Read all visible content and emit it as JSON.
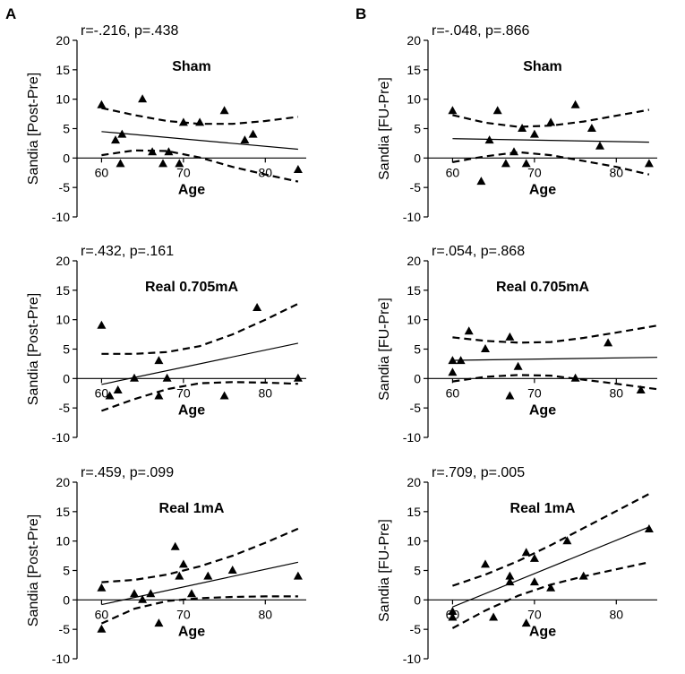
{
  "panel_labels": [
    "A",
    "B"
  ],
  "chart_data": [
    {
      "type": "scatter",
      "title": "Sham",
      "stat": "r=-.216, p=.438",
      "xlabel": "Age",
      "ylabel": "Sandia [Post-Pre]",
      "xlim": [
        57,
        85
      ],
      "ylim": [
        -10,
        20
      ],
      "xticks": [
        60,
        70,
        80
      ],
      "yticks": [
        -10,
        -5,
        0,
        5,
        10,
        15,
        20
      ],
      "points": [
        [
          60,
          9
        ],
        [
          61.7,
          3
        ],
        [
          62.5,
          4
        ],
        [
          62.3,
          -1
        ],
        [
          65,
          10
        ],
        [
          66.2,
          1
        ],
        [
          67.5,
          -1
        ],
        [
          68.2,
          1
        ],
        [
          69.5,
          -1
        ],
        [
          70,
          6
        ],
        [
          72,
          6
        ],
        [
          75,
          8
        ],
        [
          77.5,
          3
        ],
        [
          78.5,
          4
        ],
        [
          84,
          -2
        ]
      ],
      "fit": [
        [
          60,
          4.5
        ],
        [
          84,
          1.5
        ]
      ],
      "ci_upper": [
        [
          60,
          8.5
        ],
        [
          64,
          7.3
        ],
        [
          68,
          6.3
        ],
        [
          72,
          5.8
        ],
        [
          76,
          5.8
        ],
        [
          80,
          6.3
        ],
        [
          84,
          7
        ]
      ],
      "ci_lower": [
        [
          60,
          0.5
        ],
        [
          64,
          1.3
        ],
        [
          68,
          1.2
        ],
        [
          72,
          0.1
        ],
        [
          76,
          -1.5
        ],
        [
          80,
          -2.8
        ],
        [
          84,
          -4
        ]
      ]
    },
    {
      "type": "scatter",
      "title": "Sham",
      "stat": "r=-.048, p=.866",
      "xlabel": "Age",
      "ylabel": "Sandia [FU-Pre]",
      "xlim": [
        57,
        85
      ],
      "ylim": [
        -10,
        20
      ],
      "xticks": [
        60,
        70,
        80
      ],
      "yticks": [
        -10,
        -5,
        0,
        5,
        10,
        15,
        20
      ],
      "points": [
        [
          60,
          8
        ],
        [
          63.5,
          -4
        ],
        [
          64.5,
          3
        ],
        [
          65.5,
          8
        ],
        [
          66.5,
          -1
        ],
        [
          67.5,
          1
        ],
        [
          68.5,
          5
        ],
        [
          69,
          -1
        ],
        [
          70,
          4
        ],
        [
          72,
          6
        ],
        [
          75,
          9
        ],
        [
          77,
          5
        ],
        [
          78,
          2
        ],
        [
          84,
          -1
        ]
      ],
      "fit": [
        [
          60,
          3.3
        ],
        [
          84,
          2.7
        ]
      ],
      "ci_upper": [
        [
          60,
          7.3
        ],
        [
          64,
          6
        ],
        [
          68,
          5.3
        ],
        [
          72,
          5.5
        ],
        [
          76,
          6.2
        ],
        [
          80,
          7.2
        ],
        [
          84,
          8.2
        ]
      ],
      "ci_lower": [
        [
          60,
          -0.7
        ],
        [
          64,
          0.3
        ],
        [
          68,
          1
        ],
        [
          72,
          0.5
        ],
        [
          76,
          -0.5
        ],
        [
          80,
          -1.5
        ],
        [
          84,
          -2.8
        ]
      ]
    },
    {
      "type": "scatter",
      "title": "Real 0.705mA",
      "stat": "r=.432, p=.161",
      "xlabel": "Age",
      "ylabel": "Sandia [Post-Pre]",
      "xlim": [
        57,
        85
      ],
      "ylim": [
        -10,
        20
      ],
      "xticks": [
        60,
        70,
        80
      ],
      "yticks": [
        -10,
        -5,
        0,
        5,
        10,
        15,
        20
      ],
      "points": [
        [
          60,
          9
        ],
        [
          61,
          -3
        ],
        [
          62,
          -2
        ],
        [
          64,
          0
        ],
        [
          67,
          3
        ],
        [
          67,
          -3
        ],
        [
          68,
          0
        ],
        [
          75,
          -3
        ],
        [
          79,
          12
        ],
        [
          84,
          0
        ]
      ],
      "fit": [
        [
          60,
          -1
        ],
        [
          84,
          6
        ]
      ],
      "ci_upper": [
        [
          60,
          4.2
        ],
        [
          64,
          4.2
        ],
        [
          68,
          4.5
        ],
        [
          72,
          5.5
        ],
        [
          76,
          7.5
        ],
        [
          80,
          10
        ],
        [
          84,
          12.7
        ]
      ],
      "ci_lower": [
        [
          60,
          -5.5
        ],
        [
          64,
          -3.5
        ],
        [
          68,
          -1.8
        ],
        [
          72,
          -0.8
        ],
        [
          76,
          -0.6
        ],
        [
          80,
          -0.7
        ],
        [
          84,
          -0.9
        ]
      ]
    },
    {
      "type": "scatter",
      "title": "Real 0.705mA",
      "stat": "r=.054, p=.868",
      "xlabel": "Age",
      "ylabel": "Sandia [FU-Pre]",
      "xlim": [
        57,
        85
      ],
      "ylim": [
        -10,
        20
      ],
      "xticks": [
        60,
        70,
        80
      ],
      "yticks": [
        -10,
        -5,
        0,
        5,
        10,
        15,
        20
      ],
      "points": [
        [
          60,
          3
        ],
        [
          60,
          1
        ],
        [
          61,
          3
        ],
        [
          62,
          8
        ],
        [
          64,
          5
        ],
        [
          67,
          7
        ],
        [
          67,
          -3
        ],
        [
          68,
          2
        ],
        [
          75,
          0
        ],
        [
          79,
          6
        ],
        [
          83,
          -2
        ]
      ],
      "fit": [
        [
          60,
          3.1
        ],
        [
          85,
          3.6
        ]
      ],
      "ci_upper": [
        [
          60,
          7
        ],
        [
          64,
          6.4
        ],
        [
          68,
          6.1
        ],
        [
          72,
          6.2
        ],
        [
          76,
          6.9
        ],
        [
          80,
          7.8
        ],
        [
          85,
          9
        ]
      ],
      "ci_lower": [
        [
          60,
          -0.5
        ],
        [
          64,
          0.3
        ],
        [
          68,
          0.6
        ],
        [
          72,
          0.5
        ],
        [
          76,
          -0.2
        ],
        [
          80,
          -0.9
        ],
        [
          85,
          -1.8
        ]
      ]
    },
    {
      "type": "scatter",
      "title": "Real 1mA",
      "stat": "r=.459, p=.099",
      "xlabel": "Age",
      "ylabel": "Sandia [Post-Pre]",
      "xlim": [
        57,
        85
      ],
      "ylim": [
        -10,
        20
      ],
      "xticks": [
        60,
        70,
        80
      ],
      "yticks": [
        -10,
        -5,
        0,
        5,
        10,
        15,
        20
      ],
      "points": [
        [
          60,
          2
        ],
        [
          60,
          -5
        ],
        [
          64,
          1
        ],
        [
          65,
          0
        ],
        [
          66,
          1
        ],
        [
          67,
          -4
        ],
        [
          69,
          9
        ],
        [
          69.5,
          4
        ],
        [
          70,
          6
        ],
        [
          71,
          1
        ],
        [
          73,
          4
        ],
        [
          76,
          5
        ],
        [
          84,
          4
        ]
      ],
      "fit": [
        [
          60,
          -0.8
        ],
        [
          84,
          6.4
        ]
      ],
      "ci_upper": [
        [
          60,
          3
        ],
        [
          64,
          3.4
        ],
        [
          68,
          4.3
        ],
        [
          72,
          5.7
        ],
        [
          76,
          7.5
        ],
        [
          80,
          9.7
        ],
        [
          84,
          12.1
        ]
      ],
      "ci_lower": [
        [
          60,
          -4
        ],
        [
          64,
          -1.5
        ],
        [
          68,
          -0.2
        ],
        [
          72,
          0.3
        ],
        [
          76,
          0.5
        ],
        [
          80,
          0.6
        ],
        [
          84,
          0.6
        ]
      ]
    },
    {
      "type": "scatter",
      "title": "Real 1mA",
      "stat": "r=.709, p=.005",
      "xlabel": "Age",
      "ylabel": "Sandia [FU-Pre]",
      "xlim": [
        57,
        85
      ],
      "ylim": [
        -10,
        20
      ],
      "xticks": [
        60,
        70,
        80
      ],
      "yticks": [
        -10,
        -5,
        0,
        5,
        10,
        15,
        20
      ],
      "points": [
        [
          60,
          -2
        ],
        [
          60,
          -3
        ],
        [
          64,
          6
        ],
        [
          65,
          -3
        ],
        [
          67,
          3
        ],
        [
          67,
          4
        ],
        [
          69,
          8
        ],
        [
          69,
          -4
        ],
        [
          70,
          7
        ],
        [
          70,
          3
        ],
        [
          72,
          2
        ],
        [
          74,
          10
        ],
        [
          76,
          4
        ],
        [
          84,
          12
        ]
      ],
      "fit": [
        [
          60,
          -1.2
        ],
        [
          84,
          12.4
        ]
      ],
      "ci_upper": [
        [
          60,
          2.4
        ],
        [
          64,
          4.3
        ],
        [
          68,
          6.6
        ],
        [
          72,
          9.3
        ],
        [
          76,
          12.2
        ],
        [
          80,
          15.1
        ],
        [
          84,
          18
        ]
      ],
      "ci_lower": [
        [
          60,
          -4.8
        ],
        [
          64,
          -1.8
        ],
        [
          68,
          0.7
        ],
        [
          72,
          2.6
        ],
        [
          76,
          4
        ],
        [
          80,
          5.2
        ],
        [
          84,
          6.4
        ]
      ]
    }
  ]
}
